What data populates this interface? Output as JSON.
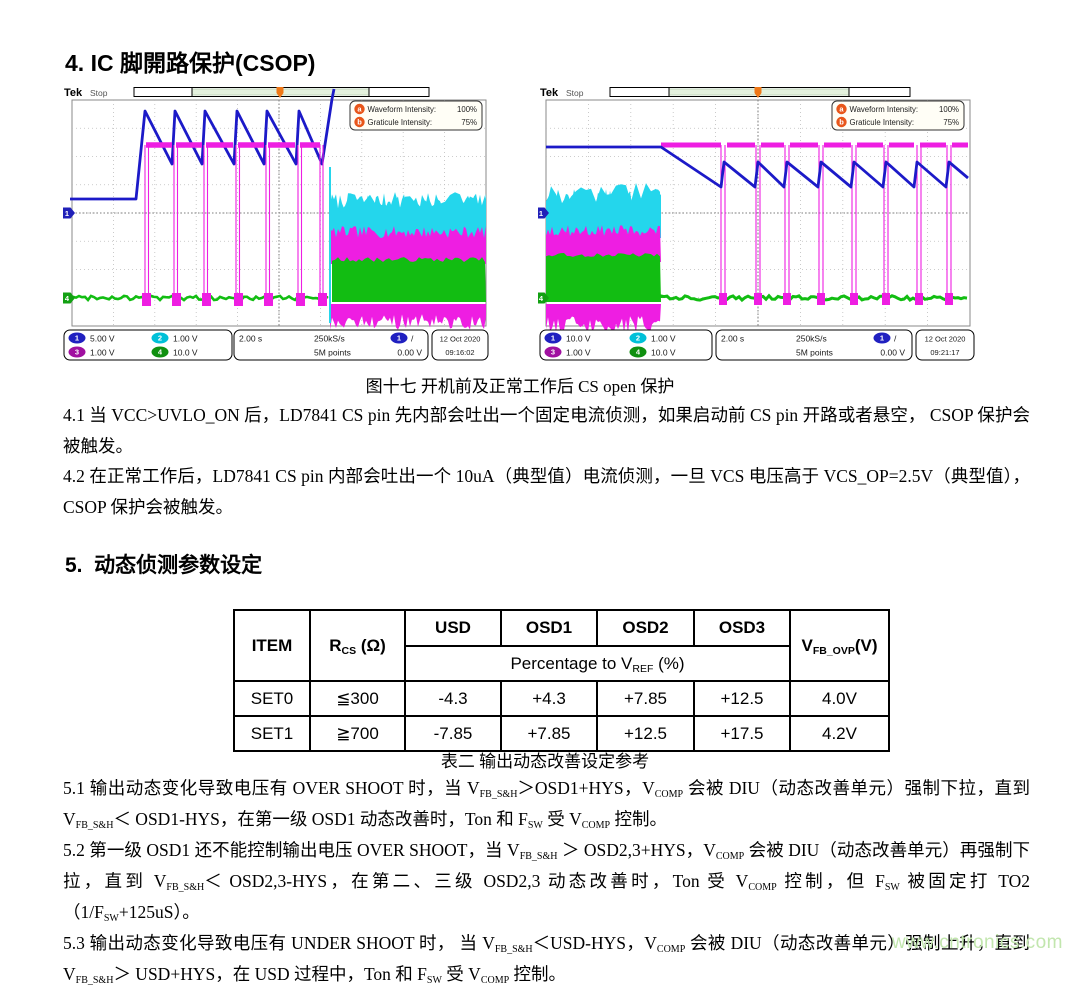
{
  "page": {
    "section4_title": "4. IC 脚開路保护(CSOP)",
    "figure_caption": "图十七  开机前及正常工作后 CS open 保护",
    "para_4_1": "4.1 当 VCC>UVLO_ON 后，LD7841 CS pin 先内部会吐出一个固定电流侦测，如果启动前 CS pin 开路或者悬空， CSOP 保护会被触发。",
    "para_4_2": "4.2 在正常工作后，LD7841 CS pin 内部会吐出一个 10uA（典型值）电流侦测，一旦 VCS 电压高于 VCS_OP=2.5V（典型值），CSOP 保护会被触发。",
    "section5_title": "5.  动态侦测参数设定",
    "table_caption": "表二  输出动态改善设定参考",
    "watermark": "www.cntronics.com"
  },
  "colors": {
    "ch1_blue": "#1c1ac8",
    "ch2_cyan": "#22d4ea",
    "ch3_magenta": "#ee1ee2",
    "ch3_badge_purple": "#a010a0",
    "ch4_green": "#12bd12",
    "trigger_orange": "#f07818",
    "watermark_green": "#c2e6ae"
  },
  "scopes": [
    {
      "brand": "Tek",
      "status": "Stop",
      "intensity": {
        "a_glyph": "a",
        "a_label": "Waveform Intensity:",
        "a_value": "100%",
        "b_glyph": "b",
        "b_label": "Graticule Intensity:",
        "b_value": "75%"
      },
      "ch1_num": "1",
      "ch1_scale": "5.00 V",
      "ch2_num": "2",
      "ch2_scale": "1.00 V",
      "ch3_num": "3",
      "ch3_scale": "1.00 V",
      "ch4_num": "4",
      "ch4_scale": "10.0 V",
      "marker1": "1",
      "marker4": "4",
      "timebase": "2.00 s",
      "rate": "250kS/s",
      "points": "5M points",
      "trig_num": "1",
      "trig_slope": "/",
      "trig_level": "0.00 V",
      "date": "12 Oct 2020",
      "time": "09:16:02"
    },
    {
      "brand": "Tek",
      "status": "Stop",
      "intensity": {
        "a_glyph": "a",
        "a_label": "Waveform Intensity:",
        "a_value": "100%",
        "b_glyph": "b",
        "b_label": "Graticule Intensity:",
        "b_value": "75%"
      },
      "ch1_num": "1",
      "ch1_scale": "10.0 V",
      "ch2_num": "2",
      "ch2_scale": "1.00 V",
      "ch3_num": "3",
      "ch3_scale": "1.00 V",
      "ch4_num": "4",
      "ch4_scale": "10.0 V",
      "marker1": "1",
      "marker4": "4",
      "timebase": "2.00 s",
      "rate": "250kS/s",
      "points": "5M points",
      "trig_num": "1",
      "trig_slope": "/",
      "trig_level": "0.00 V",
      "date": "12 Oct 2020",
      "time": "09:21:17"
    }
  ],
  "table": {
    "headers": {
      "item": "ITEM",
      "rcs": [
        {
          "t": "R"
        },
        {
          "sub": "CS"
        },
        {
          "t": " (Ω)"
        }
      ],
      "usd": "USD",
      "osd1": "OSD1",
      "osd2": "OSD2",
      "osd3": "OSD3",
      "vfb": [
        {
          "t": "V"
        },
        {
          "sub": "FB_OVP"
        },
        {
          "t": "(V)"
        }
      ],
      "pct": [
        {
          "t": "Percentage to V"
        },
        {
          "sub": "REF"
        },
        {
          "t": " (%)"
        }
      ]
    },
    "rows": [
      {
        "item": "SET0",
        "rcs": "≦300",
        "usd": "-4.3",
        "osd1": "+4.3",
        "osd2": "+7.85",
        "osd3": "+12.5",
        "vfb": "4.0V"
      },
      {
        "item": "SET1",
        "rcs": "≧700",
        "usd": "-7.85",
        "osd1": "+7.85",
        "osd2": "+12.5",
        "osd3": "+17.5",
        "vfb": "4.2V"
      }
    ]
  },
  "rich": {
    "para_5_1": [
      {
        "t": "5.1 输出动态变化导致电压有 OVER SHOOT 时，当 V"
      },
      {
        "sub": "FB_S&H"
      },
      {
        "t": "＞OSD1+HYS，V"
      },
      {
        "sub": "COMP"
      },
      {
        "t": " 会被 DIU（动态改善单元）强制下拉，直到 V"
      },
      {
        "sub": "FB_S&H"
      },
      {
        "t": "＜ OSD1-HYS，在第一级 OSD1 动态改善时，Ton 和 F"
      },
      {
        "sub": "SW"
      },
      {
        "t": " 受 V"
      },
      {
        "sub": "COMP"
      },
      {
        "t": " 控制。"
      }
    ],
    "para_5_2": [
      {
        "t": "5.2 第一级 OSD1 还不能控制输出电压 OVER SHOOT，当 V"
      },
      {
        "sub": "FB_S&H"
      },
      {
        "t": " ＞ OSD2,3+HYS，V"
      },
      {
        "sub": "COMP"
      },
      {
        "t": " 会被 DIU（动态改善单元）再强制下拉，直到 V"
      },
      {
        "sub": "FB_S&H"
      },
      {
        "t": "＜ OSD2,3-HYS，在第二、三级 OSD2,3 动态改善时，Ton 受 V"
      },
      {
        "sub": "COMP"
      },
      {
        "t": " 控制，但 F"
      },
      {
        "sub": "SW"
      },
      {
        "t": " 被固定打 TO2（1/F"
      },
      {
        "sub": "SW"
      },
      {
        "t": "+125uS）。"
      }
    ],
    "para_5_3": [
      {
        "t": "5.3 输出动态变化导致电压有 UNDER SHOOT 时， 当 V"
      },
      {
        "sub": "FB_S&H"
      },
      {
        "t": "＜USD-HYS，V"
      },
      {
        "sub": "COMP"
      },
      {
        "t": " 会被 DIU（动态改善单元）强制上升，直到 V"
      },
      {
        "sub": "FB_S&H"
      },
      {
        "t": "＞ USD+HYS，在 USD 过程中，Ton 和 F"
      },
      {
        "sub": "SW"
      },
      {
        "t": " 受 V"
      },
      {
        "sub": "COMP"
      },
      {
        "t": " 控制。"
      }
    ]
  }
}
